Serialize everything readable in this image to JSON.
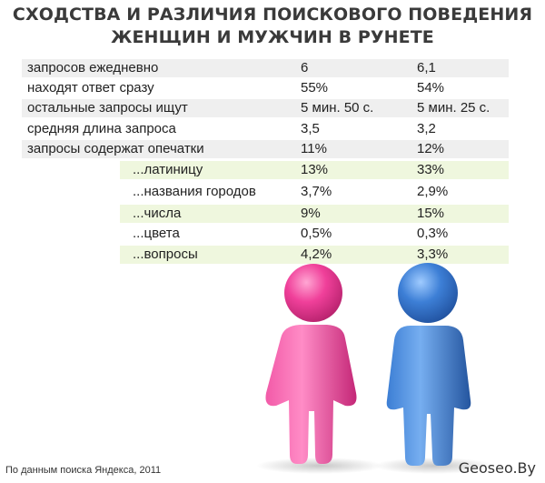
{
  "title": {
    "line1": "СХОДСТВА И РАЗЛИЧИЯ ПОИСКОВОГО ПОВЕДЕНИЯ",
    "line2": "ЖЕНЩИН И МУЖЧИН В РУНЕТЕ"
  },
  "rows": [
    {
      "label": "запросов ежедневно",
      "women": "6",
      "men": "6,1"
    },
    {
      "label": "находят ответ сразу",
      "women": "55%",
      "men": "54%"
    },
    {
      "label": "остальные запросы ищут",
      "women": "5 мин. 50 с.",
      "men": "5 мин. 25 с."
    },
    {
      "label": "средняя длина запроса",
      "women": "3,5",
      "men": "3,2"
    },
    {
      "label": "запросы содержат опечатки",
      "women": "11%",
      "men": "12%"
    }
  ],
  "subrows": [
    {
      "label": "...латиницу",
      "women": "13%",
      "men": "33%"
    },
    {
      "label": "...названия городов",
      "women": "3,7%",
      "men": "2,9%"
    },
    {
      "label": "...числа",
      "women": "9%",
      "men": "15%"
    },
    {
      "label": "...цвета",
      "women": "0,5%",
      "men": "0,3%"
    },
    {
      "label": "...вопросы",
      "women": "4,2%",
      "men": "3,3%"
    }
  ],
  "colors": {
    "women": "#f0409a",
    "men": "#3d7fd6",
    "row_shade": "#efefef",
    "subrow_shade": "#eff7de"
  },
  "icons": {
    "women": "woman-figure-icon",
    "men": "man-figure-icon"
  },
  "footer": {
    "source": "По данным поиска Яндекса, 2011",
    "brand": "Geoseo.By"
  }
}
